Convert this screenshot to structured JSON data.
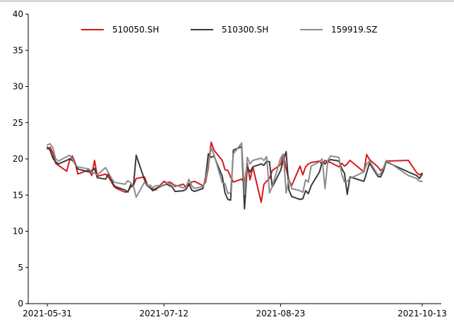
{
  "chart_data": {
    "type": "line",
    "title": "",
    "xlabel": "",
    "ylabel": "",
    "ylim": [
      0,
      40
    ],
    "y_ticks": [
      "0",
      "5",
      "10",
      "15",
      "20",
      "25",
      "30",
      "35",
      "40"
    ],
    "x_ticks": [
      "2021-05-31",
      "2021-07-12",
      "2021-08-23",
      "2021-10-13"
    ],
    "x_range": [
      "2021-05-31",
      "2021-10-13"
    ],
    "legend_position": "top-center",
    "grid": false,
    "colors": {
      "510050.SH": "#d7191c",
      "510300.SH": "#3a3a3a",
      "159919.SZ": "#8c8c8c"
    },
    "series": [
      {
        "name": "510050.SH",
        "points": [
          [
            "2021-05-31",
            21.4
          ],
          [
            "2021-06-01",
            21.6
          ],
          [
            "2021-06-02",
            20.8
          ],
          [
            "2021-06-03",
            19.4
          ],
          [
            "2021-06-04",
            19.1
          ],
          [
            "2021-06-07",
            18.3
          ],
          [
            "2021-06-08",
            19.8
          ],
          [
            "2021-06-09",
            20.4
          ],
          [
            "2021-06-10",
            19.5
          ],
          [
            "2021-06-11",
            17.9
          ],
          [
            "2021-06-15",
            18.5
          ],
          [
            "2021-06-16",
            17.7
          ],
          [
            "2021-06-17",
            19.8
          ],
          [
            "2021-06-18",
            17.6
          ],
          [
            "2021-06-21",
            17.9
          ],
          [
            "2021-06-22",
            17.5
          ],
          [
            "2021-06-23",
            16.9
          ],
          [
            "2021-06-24",
            16.2
          ],
          [
            "2021-06-25",
            15.9
          ],
          [
            "2021-06-28",
            15.4
          ],
          [
            "2021-06-29",
            15.5
          ],
          [
            "2021-06-30",
            16.1
          ],
          [
            "2021-07-01",
            16.3
          ],
          [
            "2021-07-02",
            17.3
          ],
          [
            "2021-07-05",
            17.5
          ],
          [
            "2021-07-06",
            16.4
          ],
          [
            "2021-07-07",
            16.0
          ],
          [
            "2021-07-08",
            15.8
          ],
          [
            "2021-07-09",
            15.7
          ],
          [
            "2021-07-12",
            16.9
          ],
          [
            "2021-07-13",
            16.7
          ],
          [
            "2021-07-14",
            16.8
          ],
          [
            "2021-07-15",
            16.6
          ],
          [
            "2021-07-16",
            16.2
          ],
          [
            "2021-07-19",
            16.5
          ],
          [
            "2021-07-20",
            16.1
          ],
          [
            "2021-07-21",
            16.3
          ],
          [
            "2021-07-22",
            16.8
          ],
          [
            "2021-07-23",
            16.9
          ],
          [
            "2021-07-26",
            16.3
          ],
          [
            "2021-07-27",
            16.8
          ],
          [
            "2021-07-28",
            18.8
          ],
          [
            "2021-07-29",
            22.3
          ],
          [
            "2021-07-30",
            21.2
          ],
          [
            "2021-08-02",
            19.8
          ],
          [
            "2021-08-03",
            18.5
          ],
          [
            "2021-08-04",
            18.4
          ],
          [
            "2021-08-05",
            17.5
          ],
          [
            "2021-08-06",
            16.8
          ],
          [
            "2021-08-09",
            17.2
          ],
          [
            "2021-08-10",
            16.7
          ],
          [
            "2021-08-11",
            19.4
          ],
          [
            "2021-08-12",
            17.1
          ],
          [
            "2021-08-13",
            18.9
          ],
          [
            "2021-08-16",
            14.0
          ],
          [
            "2021-08-17",
            16.5
          ],
          [
            "2021-08-18",
            16.9
          ],
          [
            "2021-08-19",
            17.3
          ],
          [
            "2021-08-20",
            18.4
          ],
          [
            "2021-08-23",
            19.2
          ],
          [
            "2021-08-24",
            20.6
          ],
          [
            "2021-08-25",
            18.6
          ],
          [
            "2021-08-26",
            17.1
          ],
          [
            "2021-08-27",
            16.3
          ],
          [
            "2021-08-30",
            19.0
          ],
          [
            "2021-08-31",
            17.8
          ],
          [
            "2021-09-01",
            18.9
          ],
          [
            "2021-09-02",
            19.3
          ],
          [
            "2021-09-03",
            19.5
          ],
          [
            "2021-09-06",
            19.7
          ],
          [
            "2021-09-07",
            19.2
          ],
          [
            "2021-09-08",
            19.8
          ],
          [
            "2021-09-09",
            19.6
          ],
          [
            "2021-09-10",
            19.5
          ],
          [
            "2021-09-13",
            18.9
          ],
          [
            "2021-09-14",
            19.4
          ],
          [
            "2021-09-15",
            19.0
          ],
          [
            "2021-09-16",
            19.3
          ],
          [
            "2021-09-17",
            19.8
          ],
          [
            "2021-09-22",
            18.2
          ],
          [
            "2021-09-23",
            20.6
          ],
          [
            "2021-09-24",
            19.9
          ],
          [
            "2021-09-27",
            18.9
          ],
          [
            "2021-09-28",
            18.4
          ],
          [
            "2021-09-29",
            18.7
          ],
          [
            "2021-09-30",
            19.7
          ],
          [
            "2021-10-08",
            19.8
          ],
          [
            "2021-10-11",
            18.1
          ],
          [
            "2021-10-12",
            17.8
          ],
          [
            "2021-10-13",
            18.0
          ]
        ]
      },
      {
        "name": "510300.SH",
        "points": [
          [
            "2021-05-31",
            21.6
          ],
          [
            "2021-06-01",
            21.2
          ],
          [
            "2021-06-02",
            20.1
          ],
          [
            "2021-06-03",
            19.6
          ],
          [
            "2021-06-04",
            19.3
          ],
          [
            "2021-06-07",
            19.8
          ],
          [
            "2021-06-08",
            20.0
          ],
          [
            "2021-06-09",
            19.8
          ],
          [
            "2021-06-10",
            19.4
          ],
          [
            "2021-06-11",
            18.6
          ],
          [
            "2021-06-15",
            18.2
          ],
          [
            "2021-06-16",
            18.4
          ],
          [
            "2021-06-17",
            18.7
          ],
          [
            "2021-06-18",
            17.4
          ],
          [
            "2021-06-21",
            17.2
          ],
          [
            "2021-06-22",
            17.9
          ],
          [
            "2021-06-23",
            17.2
          ],
          [
            "2021-06-24",
            16.3
          ],
          [
            "2021-06-25",
            16.1
          ],
          [
            "2021-06-28",
            15.7
          ],
          [
            "2021-06-29",
            15.4
          ],
          [
            "2021-06-30",
            16.4
          ],
          [
            "2021-07-01",
            16.2
          ],
          [
            "2021-07-02",
            20.5
          ],
          [
            "2021-07-05",
            17.1
          ],
          [
            "2021-07-06",
            16.3
          ],
          [
            "2021-07-07",
            16.0
          ],
          [
            "2021-07-08",
            15.6
          ],
          [
            "2021-07-09",
            15.9
          ],
          [
            "2021-07-12",
            16.4
          ],
          [
            "2021-07-13",
            16.5
          ],
          [
            "2021-07-14",
            16.3
          ],
          [
            "2021-07-15",
            16.1
          ],
          [
            "2021-07-16",
            15.5
          ],
          [
            "2021-07-19",
            15.6
          ],
          [
            "2021-07-20",
            15.8
          ],
          [
            "2021-07-21",
            16.6
          ],
          [
            "2021-07-22",
            15.7
          ],
          [
            "2021-07-23",
            15.5
          ],
          [
            "2021-07-26",
            15.9
          ],
          [
            "2021-07-27",
            17.5
          ],
          [
            "2021-07-28",
            20.7
          ],
          [
            "2021-07-29",
            20.2
          ],
          [
            "2021-07-30",
            20.4
          ],
          [
            "2021-08-02",
            17.6
          ],
          [
            "2021-08-03",
            15.3
          ],
          [
            "2021-08-04",
            14.4
          ],
          [
            "2021-08-05",
            14.3
          ],
          [
            "2021-08-06",
            21.2
          ],
          [
            "2021-08-09",
            21.7
          ],
          [
            "2021-08-10",
            13.1
          ],
          [
            "2021-08-11",
            18.9
          ],
          [
            "2021-08-12",
            18.2
          ],
          [
            "2021-08-13",
            18.9
          ],
          [
            "2021-08-16",
            19.3
          ],
          [
            "2021-08-17",
            19.1
          ],
          [
            "2021-08-18",
            19.7
          ],
          [
            "2021-08-19",
            19.6
          ],
          [
            "2021-08-20",
            16.1
          ],
          [
            "2021-08-23",
            18.4
          ],
          [
            "2021-08-24",
            19.8
          ],
          [
            "2021-08-25",
            21.0
          ],
          [
            "2021-08-26",
            15.7
          ],
          [
            "2021-08-27",
            14.8
          ],
          [
            "2021-08-30",
            14.4
          ],
          [
            "2021-08-31",
            14.5
          ],
          [
            "2021-09-01",
            15.6
          ],
          [
            "2021-09-02",
            15.2
          ],
          [
            "2021-09-03",
            16.3
          ],
          [
            "2021-09-06",
            18.2
          ],
          [
            "2021-09-07",
            19.6
          ],
          [
            "2021-09-08",
            19.3
          ],
          [
            "2021-09-09",
            19.7
          ],
          [
            "2021-09-10",
            19.9
          ],
          [
            "2021-09-13",
            19.7
          ],
          [
            "2021-09-14",
            18.7
          ],
          [
            "2021-09-15",
            18.0
          ],
          [
            "2021-09-16",
            15.1
          ],
          [
            "2021-09-17",
            17.5
          ],
          [
            "2021-09-22",
            16.9
          ],
          [
            "2021-09-23",
            18.1
          ],
          [
            "2021-09-24",
            19.4
          ],
          [
            "2021-09-27",
            17.6
          ],
          [
            "2021-09-28",
            17.5
          ],
          [
            "2021-09-29",
            18.3
          ],
          [
            "2021-09-30",
            19.6
          ],
          [
            "2021-10-08",
            18.2
          ],
          [
            "2021-10-11",
            17.7
          ],
          [
            "2021-10-12",
            17.3
          ],
          [
            "2021-10-13",
            17.9
          ]
        ]
      },
      {
        "name": "159919.SZ",
        "points": [
          [
            "2021-05-31",
            21.9
          ],
          [
            "2021-06-01",
            22.1
          ],
          [
            "2021-06-02",
            21.5
          ],
          [
            "2021-06-03",
            20.0
          ],
          [
            "2021-06-04",
            19.7
          ],
          [
            "2021-06-07",
            20.3
          ],
          [
            "2021-06-08",
            20.5
          ],
          [
            "2021-06-09",
            20.1
          ],
          [
            "2021-06-10",
            19.2
          ],
          [
            "2021-06-11",
            18.9
          ],
          [
            "2021-06-15",
            18.6
          ],
          [
            "2021-06-16",
            18.2
          ],
          [
            "2021-06-17",
            18.0
          ],
          [
            "2021-06-18",
            17.8
          ],
          [
            "2021-06-21",
            18.8
          ],
          [
            "2021-06-22",
            18.1
          ],
          [
            "2021-06-23",
            17.4
          ],
          [
            "2021-06-24",
            16.8
          ],
          [
            "2021-06-25",
            16.7
          ],
          [
            "2021-06-28",
            16.5
          ],
          [
            "2021-06-29",
            17.0
          ],
          [
            "2021-06-30",
            16.7
          ],
          [
            "2021-07-01",
            16.3
          ],
          [
            "2021-07-02",
            14.7
          ],
          [
            "2021-07-05",
            16.8
          ],
          [
            "2021-07-06",
            16.2
          ],
          [
            "2021-07-07",
            16.4
          ],
          [
            "2021-07-08",
            16.0
          ],
          [
            "2021-07-09",
            16.3
          ],
          [
            "2021-07-12",
            16.3
          ],
          [
            "2021-07-13",
            16.7
          ],
          [
            "2021-07-14",
            16.6
          ],
          [
            "2021-07-15",
            16.2
          ],
          [
            "2021-07-16",
            16.4
          ],
          [
            "2021-07-19",
            16.0
          ],
          [
            "2021-07-20",
            16.1
          ],
          [
            "2021-07-21",
            17.2
          ],
          [
            "2021-07-22",
            16.3
          ],
          [
            "2021-07-23",
            15.9
          ],
          [
            "2021-07-26",
            16.2
          ],
          [
            "2021-07-27",
            17.2
          ],
          [
            "2021-07-28",
            19.1
          ],
          [
            "2021-07-29",
            21.5
          ],
          [
            "2021-07-30",
            20.6
          ],
          [
            "2021-08-02",
            16.7
          ],
          [
            "2021-08-03",
            16.6
          ],
          [
            "2021-08-04",
            15.2
          ],
          [
            "2021-08-05",
            15.4
          ],
          [
            "2021-08-06",
            20.7
          ],
          [
            "2021-08-09",
            22.2
          ],
          [
            "2021-08-10",
            15.1
          ],
          [
            "2021-08-11",
            20.2
          ],
          [
            "2021-08-12",
            19.3
          ],
          [
            "2021-08-13",
            19.8
          ],
          [
            "2021-08-16",
            20.1
          ],
          [
            "2021-08-17",
            19.8
          ],
          [
            "2021-08-18",
            20.3
          ],
          [
            "2021-08-19",
            15.3
          ],
          [
            "2021-08-20",
            16.2
          ],
          [
            "2021-08-23",
            20.1
          ],
          [
            "2021-08-24",
            20.7
          ],
          [
            "2021-08-25",
            15.3
          ],
          [
            "2021-08-26",
            17.3
          ],
          [
            "2021-08-27",
            15.9
          ],
          [
            "2021-08-30",
            15.6
          ],
          [
            "2021-08-31",
            15.4
          ],
          [
            "2021-09-01",
            17.1
          ],
          [
            "2021-09-02",
            16.8
          ],
          [
            "2021-09-03",
            19.0
          ],
          [
            "2021-09-06",
            19.6
          ],
          [
            "2021-09-07",
            20.0
          ],
          [
            "2021-09-08",
            15.9
          ],
          [
            "2021-09-09",
            19.8
          ],
          [
            "2021-09-10",
            20.4
          ],
          [
            "2021-09-13",
            20.2
          ],
          [
            "2021-09-14",
            17.9
          ],
          [
            "2021-09-15",
            16.8
          ],
          [
            "2021-09-16",
            16.9
          ],
          [
            "2021-09-17",
            17.3
          ],
          [
            "2021-09-22",
            18.2
          ],
          [
            "2021-09-23",
            19.3
          ],
          [
            "2021-09-24",
            19.7
          ],
          [
            "2021-09-27",
            17.8
          ],
          [
            "2021-09-28",
            17.9
          ],
          [
            "2021-09-29",
            18.7
          ],
          [
            "2021-09-30",
            19.8
          ],
          [
            "2021-10-08",
            17.7
          ],
          [
            "2021-10-11",
            17.3
          ],
          [
            "2021-10-12",
            16.9
          ],
          [
            "2021-10-13",
            16.9
          ]
        ]
      }
    ]
  }
}
